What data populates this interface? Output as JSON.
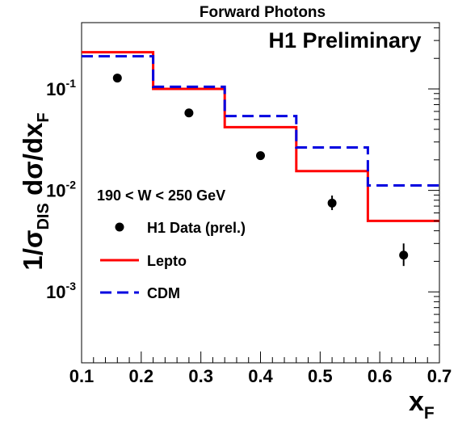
{
  "chart_data": {
    "type": "scatter",
    "title": "Forward Photons",
    "annotation": "H1 Preliminary",
    "cut_label": "190 < W < 250 GeV",
    "ylabel": {
      "lead": "1/σ",
      "lead_sub": "DIS",
      "mid": " dσ/dx",
      "mid_sub": "F"
    },
    "xlabel": {
      "main": "x",
      "sub": "F"
    },
    "x_scale": "linear",
    "y_scale": "log",
    "xlim": [
      0.1,
      0.7
    ],
    "ylim": [
      0.0002,
      0.45
    ],
    "x_tick_labels": [
      "0.1",
      "0.2",
      "0.3",
      "0.4",
      "0.5",
      "0.6",
      "0.7"
    ],
    "y_tick_labels": [
      {
        "base": "10",
        "exp": "-1",
        "value": 0.1
      },
      {
        "base": "10",
        "exp": "-2",
        "value": 0.01
      },
      {
        "base": "10",
        "exp": "-3",
        "value": 0.001
      }
    ],
    "bin_edges": [
      0.1,
      0.22,
      0.34,
      0.46,
      0.58,
      0.7
    ],
    "series": [
      {
        "name": "H1 Data (prel.)",
        "kind": "points",
        "color": "#000000",
        "x": [
          0.16,
          0.28,
          0.4,
          0.52,
          0.64
        ],
        "y": [
          0.128,
          0.058,
          0.022,
          0.0075,
          0.0023
        ],
        "err_low": [
          0.121,
          0.055,
          0.0202,
          0.0064,
          0.0018
        ],
        "err_high": [
          0.135,
          0.061,
          0.024,
          0.0089,
          0.003
        ]
      },
      {
        "name": "Lepto",
        "kind": "histogram",
        "color": "#ff0000",
        "dashed": false,
        "values": [
          0.23,
          0.1,
          0.042,
          0.0155,
          0.005
        ]
      },
      {
        "name": "CDM",
        "kind": "histogram",
        "color": "#0000e0",
        "dashed": true,
        "values": [
          0.21,
          0.105,
          0.054,
          0.0265,
          0.0112
        ]
      }
    ],
    "legend_placement": "lower-left",
    "grid": false
  }
}
